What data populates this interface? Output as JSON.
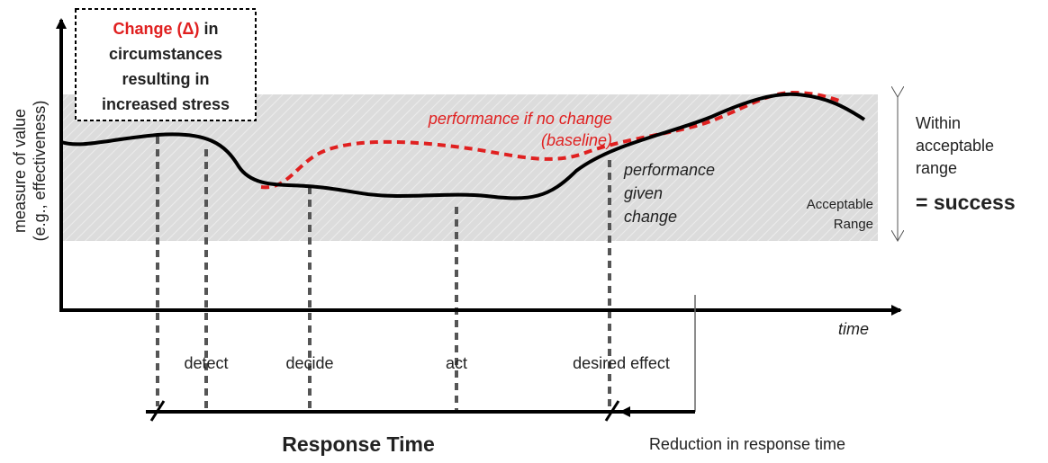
{
  "box": {
    "highlight": "Change (Δ)",
    "rest": "in",
    "lines": [
      "circumstances",
      "resulting in",
      "increased stress"
    ]
  },
  "y_axis": [
    "measure of value",
    "(e.g., effectiveness)"
  ],
  "x_axis": "time",
  "baseline": [
    "performance if no change",
    "(baseline)"
  ],
  "given": [
    "performance",
    "given",
    "change"
  ],
  "range": [
    "Acceptable",
    "Range"
  ],
  "success": [
    "Within",
    "acceptable",
    "range",
    "= success"
  ],
  "steps": [
    "detect",
    "decide",
    "act",
    "desired effect"
  ],
  "response_time": "Response Time",
  "reduction": "Reduction in response time"
}
